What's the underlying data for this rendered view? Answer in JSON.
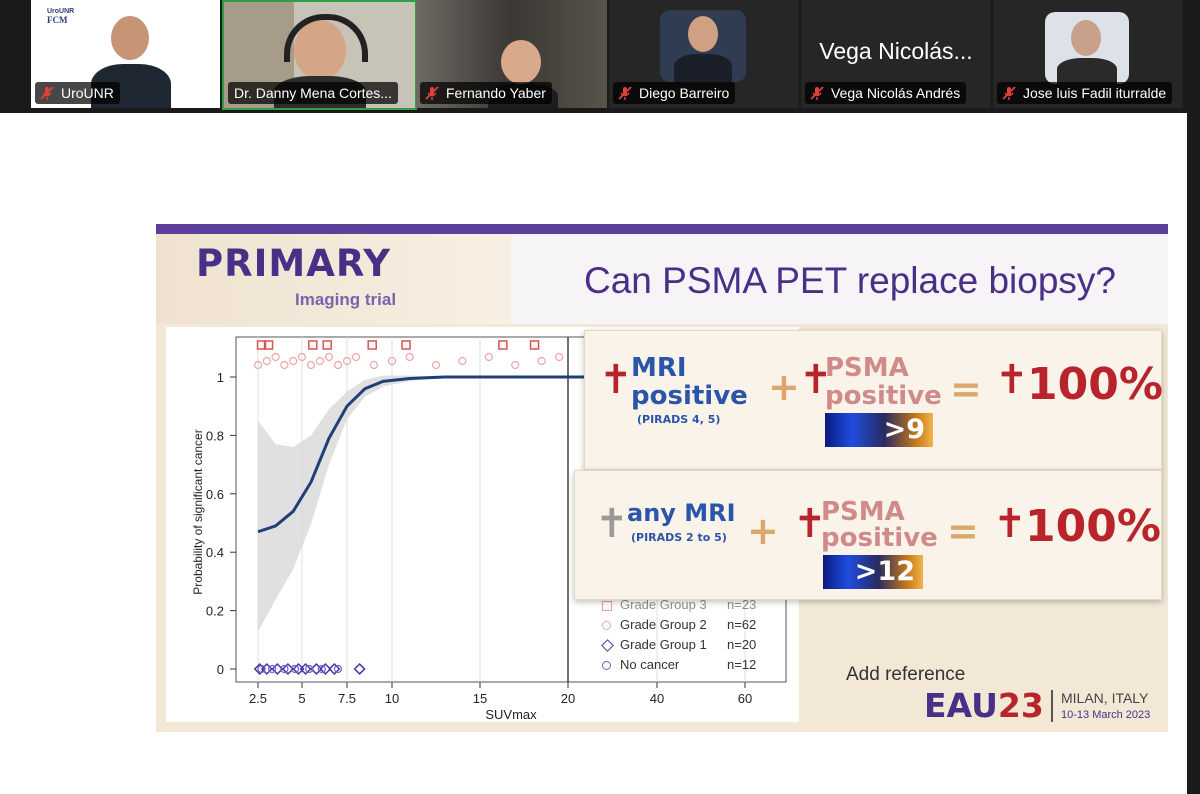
{
  "participants": [
    {
      "name": "UroUNR",
      "logo_line1": "UroUNR",
      "logo_line2": "FCM"
    },
    {
      "name": "Dr. Danny Mena Cortes..."
    },
    {
      "name": "Fernando Yaber"
    },
    {
      "name": "Diego Barreiro"
    },
    {
      "name": "Vega Nicolás Andrés",
      "big_label": "Vega Nicolás..."
    },
    {
      "name": "Jose luis Fadil iturralde"
    }
  ],
  "colors": {
    "speaker_border": "#2ea043",
    "muted_icon": "#e0413b",
    "trial_purple": "#4a2f86"
  },
  "slide": {
    "brand": "PRIMARY",
    "brand_sub": "Imaging trial",
    "title": "Can PSMA PET replace biopsy?",
    "card1": {
      "mri": "MRI",
      "mri2": "positive",
      "mri_sub": "(PIRADS 4, 5)",
      "plus": "+",
      "psma": "PSMA",
      "psma2": "positive",
      "threshold": ">9",
      "eq": "=",
      "result": "100%"
    },
    "card2": {
      "mri": "any MRI",
      "mri_sub": "(PIRADS 2 to 5)",
      "plus": "+",
      "psma": "PSMA",
      "psma2": "positive",
      "threshold": ">12",
      "eq": "=",
      "result": "100%"
    },
    "add_reference": "Add reference",
    "eau_a": "EAU",
    "eau_b": "23",
    "city": "MILAN, ITALY",
    "dates": "10-13 March 2023"
  },
  "chart_data": {
    "type": "scatter",
    "xlabel": "SUVmax",
    "ylabel": "Probability of significant cancer",
    "x_ticks": [
      "2.5",
      "5",
      "7.5",
      "10",
      "15",
      "20",
      "40",
      "60"
    ],
    "y_ticks": [
      "0",
      "0.2",
      "0.4",
      "0.6",
      "0.8",
      "1"
    ],
    "ylim": [
      0,
      1
    ],
    "reference_line_x": 20,
    "fit_curve": {
      "x": [
        2.5,
        3.5,
        4.5,
        5.5,
        6.5,
        7.5,
        8.5,
        9.5,
        11,
        13,
        15,
        20,
        40,
        60
      ],
      "y": [
        0.47,
        0.49,
        0.54,
        0.64,
        0.79,
        0.9,
        0.96,
        0.985,
        0.995,
        1,
        1,
        1,
        1,
        1
      ]
    },
    "legend": [
      {
        "label": "Grade Group 3",
        "n": "n=23"
      },
      {
        "label": "Grade Group 2",
        "n": "n=62"
      },
      {
        "label": "Grade Group 1",
        "n": "n=20"
      },
      {
        "label": "No cancer",
        "n": "n=12"
      }
    ],
    "series": [
      {
        "name": "Grade Group 3",
        "marker": "square",
        "y": 1,
        "x": [
          2.7,
          3.1,
          5.6,
          6.4,
          8.9,
          10.8,
          16.3,
          18.1
        ]
      },
      {
        "name": "Grade Group 2",
        "marker": "circle",
        "y": 1,
        "x": [
          2.5,
          3.0,
          3.5,
          4.0,
          4.5,
          5.0,
          5.5,
          6.0,
          6.5,
          7.0,
          7.5,
          8.0,
          9.0,
          10.0,
          11.0,
          12.5,
          14.0,
          15.5,
          17.0,
          18.5,
          19.5
        ]
      },
      {
        "name": "Grade Group 1",
        "marker": "diamond",
        "y": 0,
        "x": [
          2.6,
          3.0,
          3.6,
          4.2,
          4.8,
          5.2,
          5.8,
          6.3,
          6.8,
          8.2
        ]
      },
      {
        "name": "No cancer",
        "marker": "circle",
        "y": 0,
        "x": [
          2.7,
          3.3,
          4.0,
          4.6,
          5.4,
          6.1,
          7.0
        ]
      }
    ]
  }
}
